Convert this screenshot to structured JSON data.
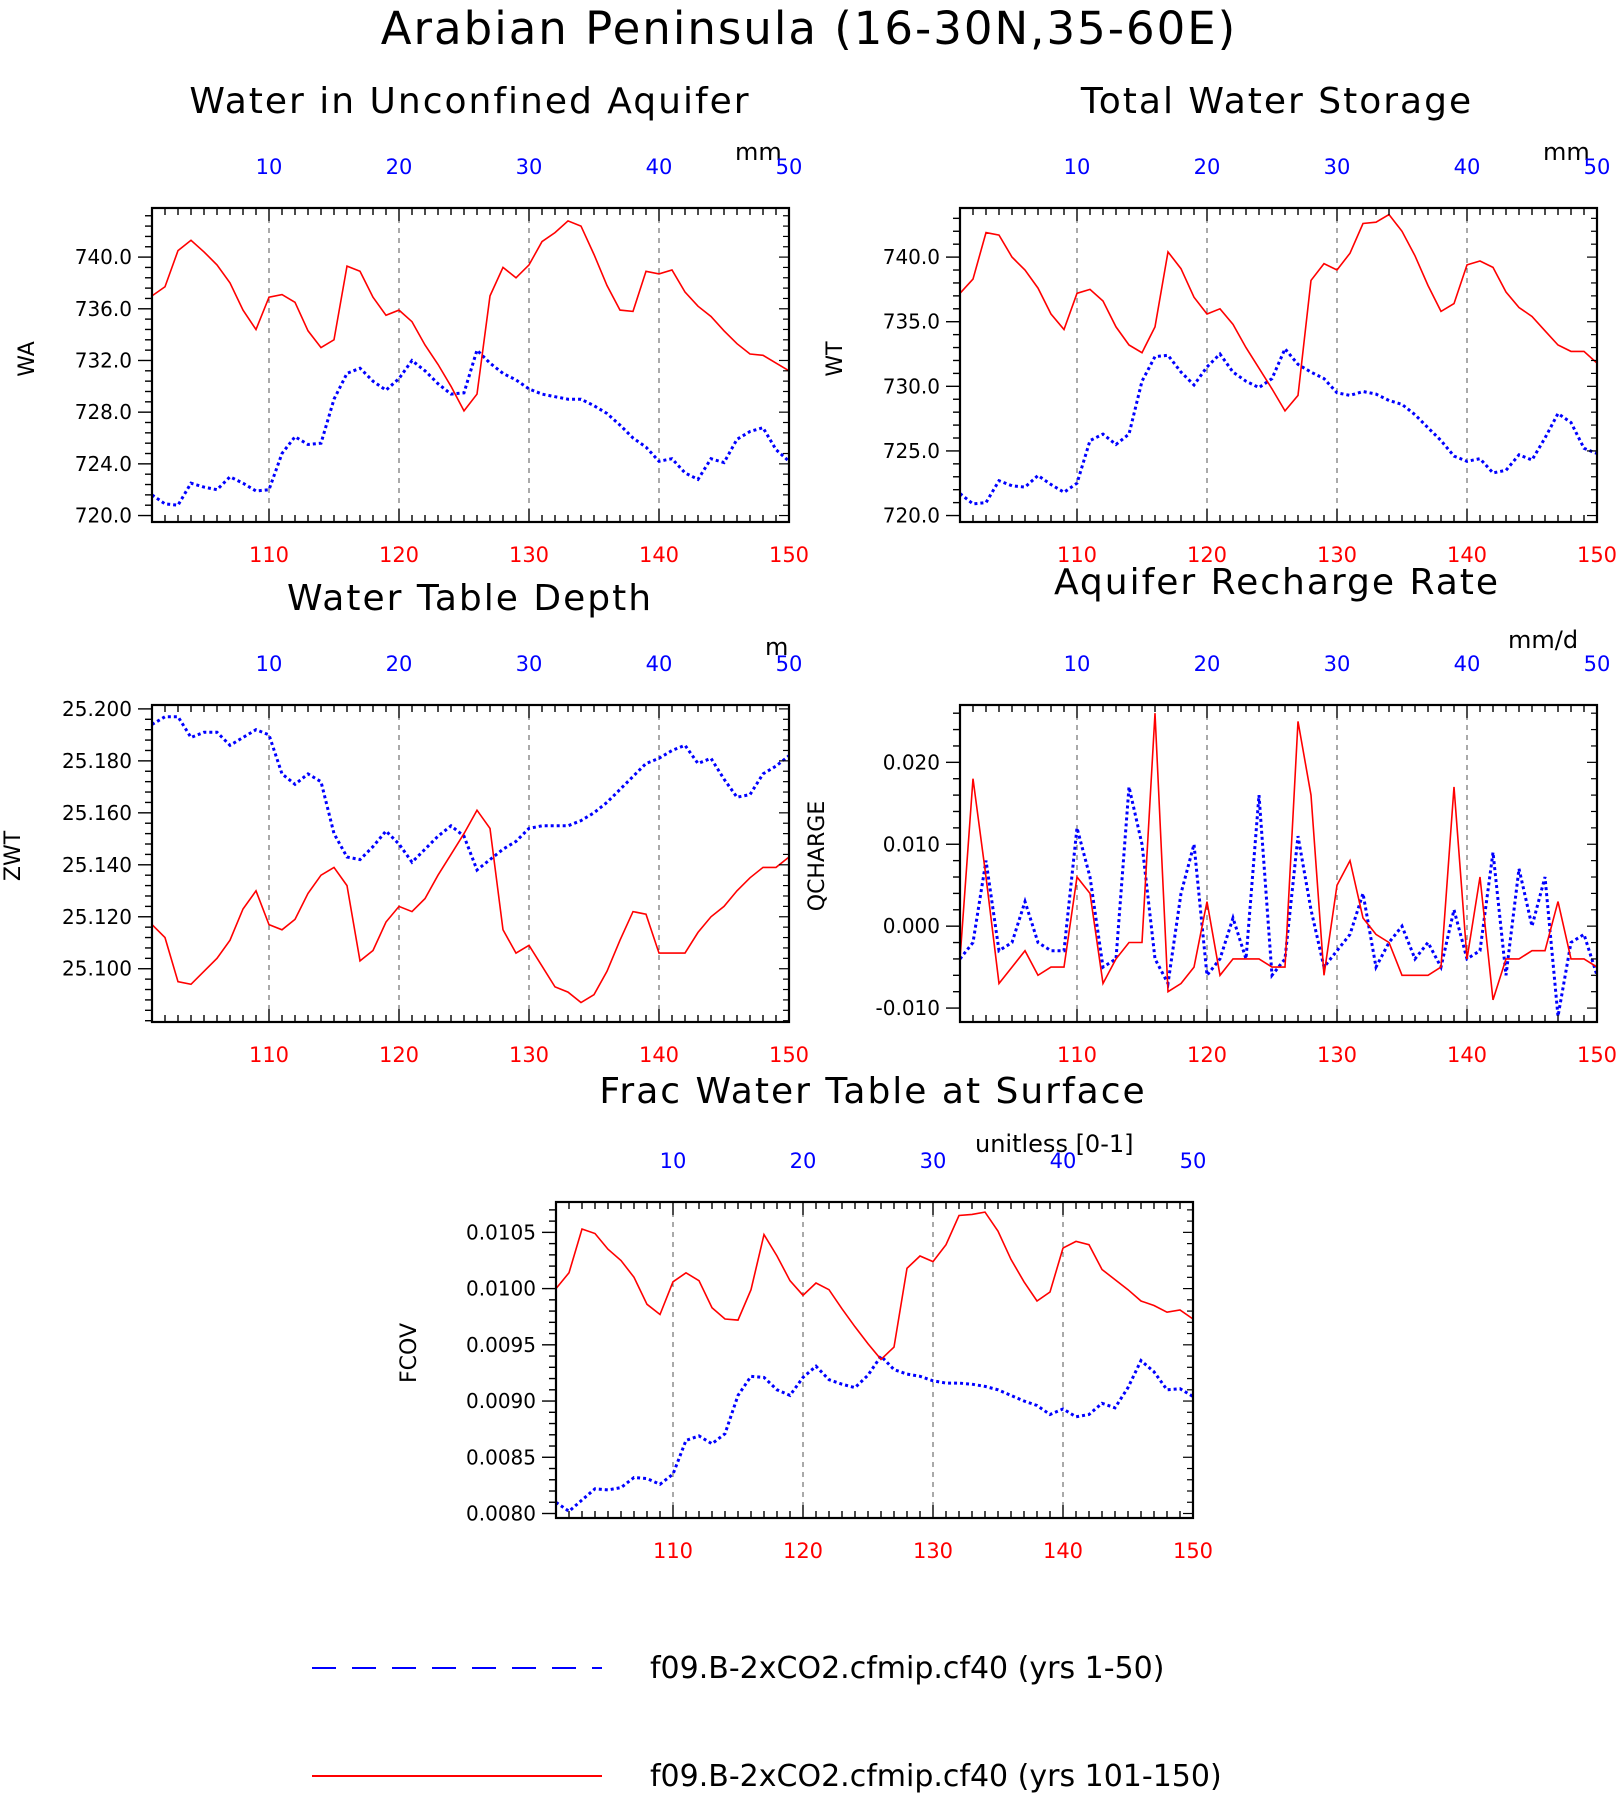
{
  "figure_title": "Arabian Peninsula (16-30N,35-60E)",
  "legend": {
    "blue_label": "f09.B-2xCO2.cfmip.cf40 (yrs 1-50)",
    "red_label": "f09.B-2xCO2.cfmip.cf40 (yrs 101-150)"
  },
  "colors": {
    "blue": "#0000ff",
    "red": "#ff0000",
    "axis": "#000000",
    "grid": "#555555"
  },
  "chart_data": [
    {
      "type": "line",
      "title": "Water in Unconfined Aquifer",
      "ylabel": "WA",
      "units": "mm",
      "ylim": [
        719.5,
        743.8
      ],
      "yticks": [
        "720.0",
        "724.0",
        "728.0",
        "732.0",
        "736.0",
        "740.0"
      ],
      "xlim_bottom": [
        101,
        150
      ],
      "xlim_top": [
        1,
        50
      ],
      "bottom_ticks": [
        "110",
        "120",
        "130",
        "140",
        "150"
      ],
      "top_ticks": [
        "10",
        "20",
        "30",
        "40",
        "50"
      ],
      "series": [
        {
          "name": "f09.B-2xCO2.cfmip.cf40 (yrs 1-50)",
          "axis": "top",
          "x_start": 1,
          "values": [
            721.6,
            720.9,
            720.8,
            722.5,
            722.2,
            722.0,
            723.0,
            722.5,
            721.9,
            722.0,
            724.8,
            726.1,
            725.5,
            725.6,
            729.0,
            731.0,
            731.4,
            730.4,
            729.7,
            730.6,
            732.0,
            731.2,
            730.2,
            729.4,
            729.5,
            732.8,
            731.8,
            731.0,
            730.5,
            729.8,
            729.4,
            729.2,
            729.0,
            729.0,
            728.5,
            727.9,
            727.0,
            726.0,
            725.3,
            724.2,
            724.4,
            723.3,
            722.8,
            724.4,
            724.1,
            725.9,
            726.5,
            726.8,
            725.1,
            724.2
          ]
        },
        {
          "name": "f09.B-2xCO2.cfmip.cf40 (yrs 101-150)",
          "axis": "bottom",
          "x_start": 101,
          "values": [
            737.0,
            737.7,
            740.5,
            741.3,
            740.4,
            739.4,
            738.0,
            735.9,
            734.4,
            736.9,
            737.1,
            736.5,
            734.3,
            733.0,
            733.6,
            739.3,
            738.9,
            736.9,
            735.5,
            735.9,
            735.0,
            733.2,
            731.7,
            730.0,
            728.1,
            729.4,
            737.0,
            739.2,
            738.4,
            739.4,
            741.2,
            741.9,
            742.8,
            742.4,
            740.2,
            737.8,
            735.9,
            735.8,
            738.9,
            738.7,
            739.0,
            737.3,
            736.2,
            735.4,
            734.3,
            733.3,
            732.5,
            732.4,
            731.8,
            731.2
          ]
        }
      ]
    },
    {
      "type": "line",
      "title": "Total Water Storage",
      "ylabel": "WT",
      "units": "mm",
      "ylim": [
        719.5,
        743.8
      ],
      "yticks": [
        "720.0",
        "725.0",
        "730.0",
        "735.0",
        "740.0"
      ],
      "xlim_bottom": [
        101,
        150
      ],
      "xlim_top": [
        1,
        50
      ],
      "bottom_ticks": [
        "110",
        "120",
        "130",
        "140",
        "150"
      ],
      "top_ticks": [
        "10",
        "20",
        "30",
        "40",
        "50"
      ],
      "series": [
        {
          "name": "f09.B-2xCO2.cfmip.cf40 (yrs 1-50)",
          "axis": "top",
          "x_start": 1,
          "values": [
            721.7,
            720.9,
            721.0,
            722.7,
            722.3,
            722.2,
            723.1,
            722.4,
            721.8,
            722.5,
            725.8,
            726.3,
            725.5,
            726.3,
            730.4,
            732.3,
            732.4,
            731.1,
            730.1,
            731.5,
            732.5,
            731.1,
            730.4,
            729.9,
            730.6,
            732.9,
            731.7,
            731.1,
            730.6,
            729.5,
            729.3,
            729.6,
            729.4,
            728.9,
            728.6,
            727.8,
            726.8,
            725.8,
            724.6,
            724.2,
            724.4,
            723.3,
            723.5,
            724.7,
            724.3,
            726.0,
            727.9,
            727.2,
            725.2,
            724.8
          ]
        },
        {
          "name": "f09.B-2xCO2.cfmip.cf40 (yrs 101-150)",
          "axis": "bottom",
          "x_start": 101,
          "values": [
            737.2,
            738.3,
            741.9,
            741.7,
            740.0,
            739.0,
            737.6,
            735.6,
            734.4,
            737.2,
            737.5,
            736.6,
            734.6,
            733.2,
            732.6,
            734.6,
            740.4,
            739.1,
            736.9,
            735.6,
            736.0,
            734.8,
            733.0,
            731.4,
            729.8,
            728.1,
            729.3,
            738.2,
            739.5,
            739.0,
            740.3,
            742.6,
            742.7,
            743.3,
            742.0,
            740.1,
            737.8,
            735.8,
            736.4,
            739.4,
            739.7,
            739.2,
            737.3,
            736.1,
            735.4,
            734.3,
            733.2,
            732.7,
            732.7,
            731.8
          ]
        }
      ]
    },
    {
      "type": "line",
      "title": "Water Table Depth",
      "ylabel": "ZWT",
      "units": "m",
      "ylim": [
        25.0795,
        25.2015
      ],
      "yticks": [
        "25.100",
        "25.120",
        "25.140",
        "25.160",
        "25.180",
        "25.200"
      ],
      "xlim_bottom": [
        101,
        150
      ],
      "xlim_top": [
        1,
        50
      ],
      "bottom_ticks": [
        "110",
        "120",
        "130",
        "140",
        "150"
      ],
      "top_ticks": [
        "10",
        "20",
        "30",
        "40",
        "50"
      ],
      "series": [
        {
          "name": "f09.B-2xCO2.cfmip.cf40 (yrs 1-50)",
          "axis": "top",
          "x_start": 1,
          "values": [
            25.194,
            25.197,
            25.197,
            25.189,
            25.191,
            25.191,
            25.186,
            25.189,
            25.192,
            25.19,
            25.175,
            25.171,
            25.175,
            25.172,
            25.152,
            25.143,
            25.142,
            25.147,
            25.153,
            25.148,
            25.141,
            25.146,
            25.151,
            25.155,
            25.151,
            25.138,
            25.142,
            25.146,
            25.149,
            25.154,
            25.155,
            25.155,
            25.155,
            25.157,
            25.16,
            25.164,
            25.169,
            25.174,
            25.179,
            25.181,
            25.184,
            25.186,
            25.179,
            25.181,
            25.173,
            25.166,
            25.167,
            25.175,
            25.178,
            25.182
          ]
        },
        {
          "name": "f09.B-2xCO2.cfmip.cf40 (yrs 101-150)",
          "axis": "bottom",
          "x_start": 101,
          "values": [
            25.117,
            25.112,
            25.095,
            25.094,
            25.099,
            25.104,
            25.111,
            25.123,
            25.13,
            25.117,
            25.115,
            25.119,
            25.129,
            25.136,
            25.139,
            25.132,
            25.103,
            25.107,
            25.118,
            25.124,
            25.122,
            25.127,
            25.136,
            25.144,
            25.152,
            25.161,
            25.154,
            25.115,
            25.106,
            25.109,
            25.101,
            25.093,
            25.091,
            25.087,
            25.09,
            25.099,
            25.111,
            25.122,
            25.121,
            25.106,
            25.106,
            25.106,
            25.114,
            25.12,
            25.124,
            25.13,
            25.135,
            25.139,
            25.139,
            25.143
          ]
        }
      ]
    },
    {
      "type": "line",
      "title": "Aquifer Recharge Rate",
      "ylabel": "QCHARGE",
      "units": "mm/d",
      "ylim": [
        -0.0117,
        0.027
      ],
      "yticks": [
        "-0.010",
        "0.000",
        "0.010",
        "0.020"
      ],
      "xlim_bottom": [
        101,
        150
      ],
      "xlim_top": [
        1,
        50
      ],
      "bottom_ticks": [
        "110",
        "120",
        "130",
        "140",
        "150"
      ],
      "top_ticks": [
        "10",
        "20",
        "30",
        "40",
        "50"
      ],
      "series": [
        {
          "name": "f09.B-2xCO2.cfmip.cf40 (yrs 1-50)",
          "axis": "top",
          "x_start": 1,
          "values": [
            -0.004,
            -0.002,
            0.008,
            -0.003,
            -0.002,
            0.003,
            -0.002,
            -0.003,
            -0.003,
            0.012,
            0.006,
            -0.005,
            -0.004,
            0.017,
            0.01,
            -0.004,
            -0.007,
            0.004,
            0.01,
            -0.006,
            -0.004,
            0.001,
            -0.004,
            0.016,
            -0.006,
            -0.004,
            0.011,
            0.002,
            -0.005,
            -0.003,
            -0.001,
            0.004,
            -0.005,
            -0.002,
            0.0,
            -0.004,
            -0.002,
            -0.005,
            0.002,
            -0.004,
            -0.003,
            0.009,
            -0.006,
            0.007,
            0.0,
            0.006,
            -0.011,
            -0.002,
            -0.001,
            -0.006
          ]
        },
        {
          "name": "f09.B-2xCO2.cfmip.cf40 (yrs 101-150)",
          "axis": "bottom",
          "x_start": 101,
          "values": [
            -0.004,
            0.018,
            0.006,
            -0.007,
            -0.005,
            -0.003,
            -0.006,
            -0.005,
            -0.005,
            0.006,
            0.004,
            -0.007,
            -0.004,
            -0.002,
            -0.002,
            0.026,
            -0.008,
            -0.007,
            -0.005,
            0.003,
            -0.006,
            -0.004,
            -0.004,
            -0.004,
            -0.005,
            -0.005,
            0.025,
            0.016,
            -0.006,
            0.005,
            0.008,
            0.001,
            -0.001,
            -0.002,
            -0.006,
            -0.006,
            -0.006,
            -0.005,
            0.017,
            -0.004,
            0.006,
            -0.009,
            -0.004,
            -0.004,
            -0.003,
            -0.003,
            0.003,
            -0.004,
            -0.004,
            -0.005
          ]
        }
      ]
    },
    {
      "type": "line",
      "title": "Frac Water Table at Surface",
      "ylabel": "FCOV",
      "units": "unitless [0-1]",
      "ylim": [
        0.00796,
        0.01077
      ],
      "yticks": [
        "0.0080",
        "0.0085",
        "0.0090",
        "0.0095",
        "0.0100",
        "0.0105"
      ],
      "xlim_bottom": [
        101,
        150
      ],
      "xlim_top": [
        1,
        50
      ],
      "bottom_ticks": [
        "110",
        "120",
        "130",
        "140",
        "150"
      ],
      "top_ticks": [
        "10",
        "20",
        "30",
        "40",
        "50"
      ],
      "series": [
        {
          "name": "f09.B-2xCO2.cfmip.cf40 (yrs 1-50)",
          "axis": "top",
          "x_start": 1,
          "values": [
            0.0081,
            0.00802,
            0.00812,
            0.00822,
            0.00821,
            0.00823,
            0.00832,
            0.00831,
            0.00826,
            0.00835,
            0.00865,
            0.00869,
            0.00862,
            0.00871,
            0.00905,
            0.00922,
            0.00921,
            0.0091,
            0.00905,
            0.00921,
            0.00931,
            0.00919,
            0.00915,
            0.00912,
            0.00923,
            0.0094,
            0.00928,
            0.00924,
            0.00922,
            0.00918,
            0.00916,
            0.00916,
            0.00915,
            0.00913,
            0.0091,
            0.00905,
            0.009,
            0.00896,
            0.00888,
            0.00893,
            0.00886,
            0.00888,
            0.00898,
            0.00894,
            0.00912,
            0.00936,
            0.00926,
            0.0091,
            0.00911,
            0.00904
          ]
        },
        {
          "name": "f09.B-2xCO2.cfmip.cf40 (yrs 101-150)",
          "axis": "bottom",
          "x_start": 101,
          "values": [
            0.01,
            0.01014,
            0.01053,
            0.01049,
            0.01035,
            0.01025,
            0.0101,
            0.00986,
            0.00977,
            0.01006,
            0.01014,
            0.01007,
            0.00983,
            0.00973,
            0.00972,
            0.00999,
            0.01048,
            0.01029,
            0.01007,
            0.00994,
            0.01005,
            0.00999,
            0.00982,
            0.00966,
            0.00951,
            0.00937,
            0.00948,
            0.01018,
            0.01029,
            0.01024,
            0.01039,
            0.01065,
            0.01066,
            0.01068,
            0.01051,
            0.01026,
            0.01006,
            0.00989,
            0.00997,
            0.01036,
            0.01042,
            0.01039,
            0.01017,
            0.01008,
            0.00999,
            0.00989,
            0.00985,
            0.00979,
            0.00981,
            0.00973
          ]
        }
      ]
    }
  ]
}
